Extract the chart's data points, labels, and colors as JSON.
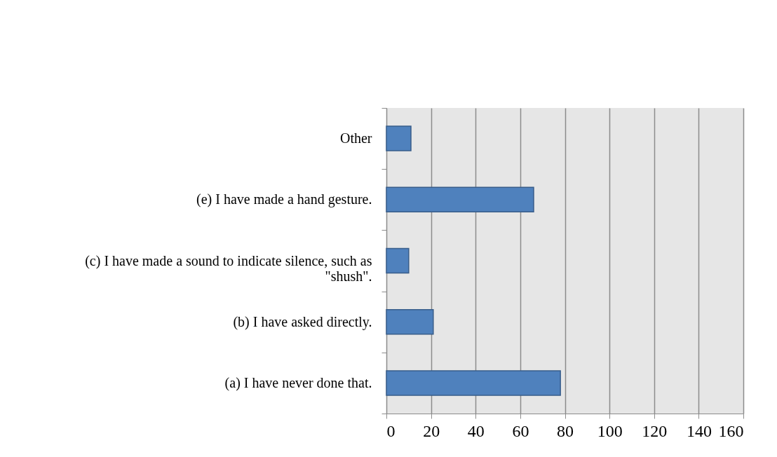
{
  "chart_data": {
    "type": "bar",
    "orientation": "horizontal",
    "categories": [
      "Other",
      "(e) I have made a hand gesture.",
      "(c) I have made a sound to indicate silence, such as \"shush\".",
      "(b) I have asked directly.",
      "(a) I have never done that."
    ],
    "values": [
      11,
      66,
      10,
      21,
      78
    ],
    "color": "#4f81bd",
    "xlim": [
      0,
      160
    ],
    "xticks": [
      0,
      20,
      40,
      60,
      80,
      100,
      120,
      140,
      160
    ],
    "grid": "x"
  }
}
